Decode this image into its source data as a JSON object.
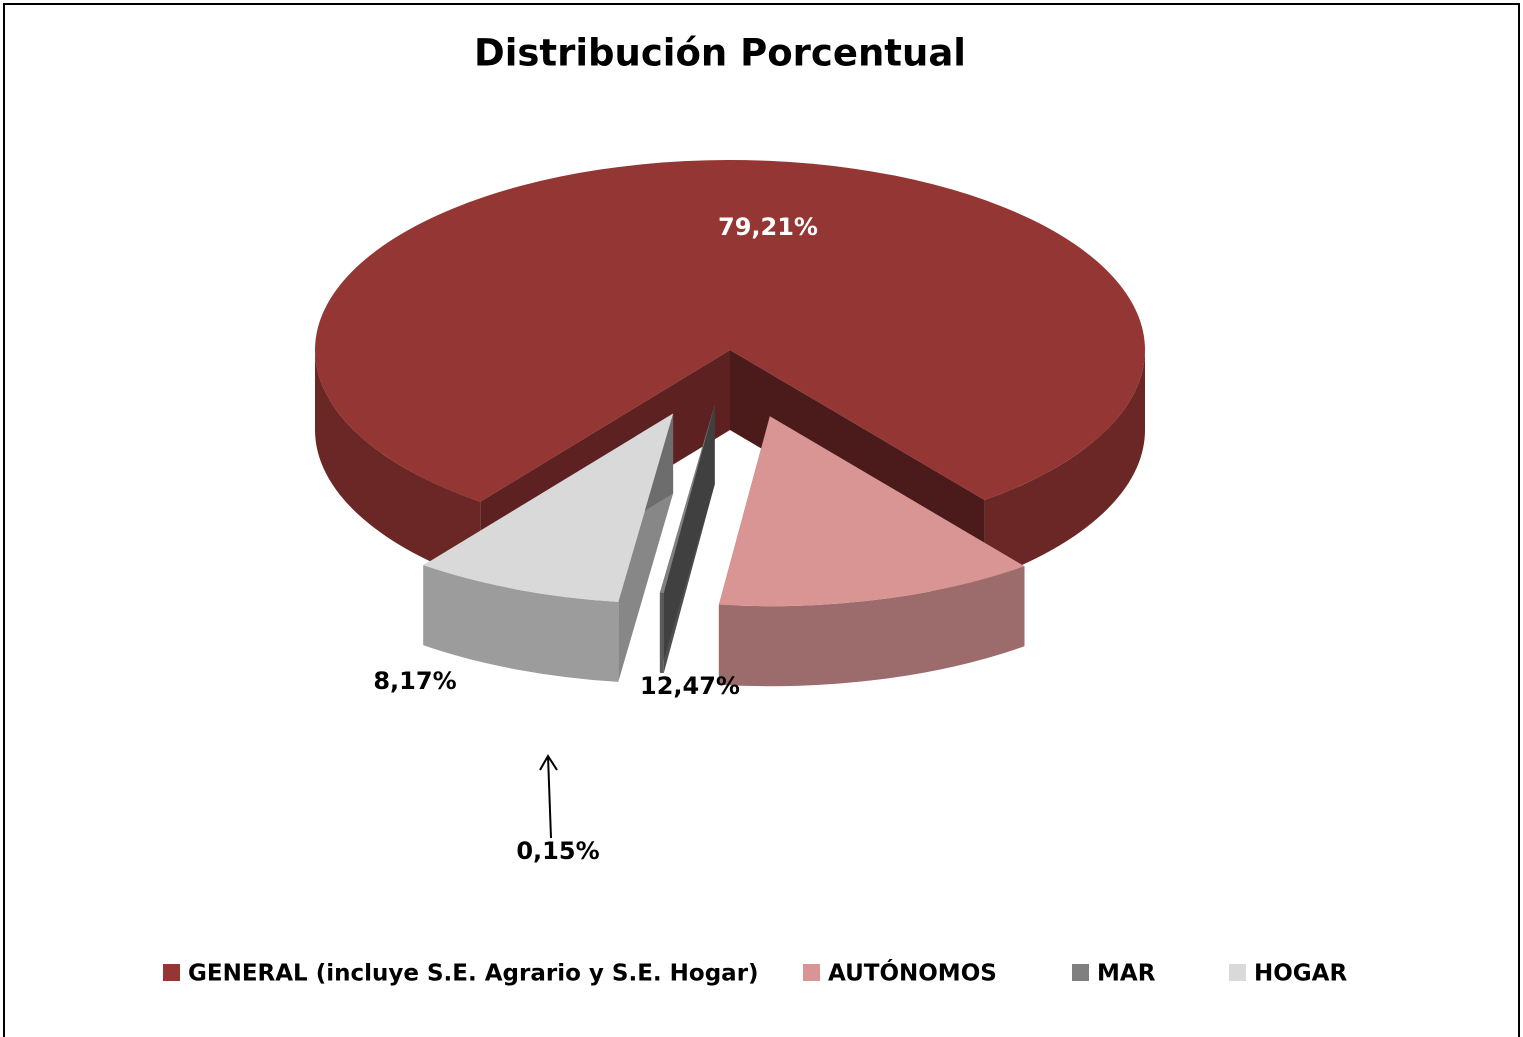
{
  "chart_data": {
    "type": "pie3d",
    "title": "Distribución Porcentual",
    "categories": [
      "GENERAL (incluye S.E. Agrario y S.E. Hogar)",
      "AUTÓNOMOS",
      "MAR",
      "HOGAR"
    ],
    "values": [
      79.21,
      12.47,
      0.15,
      8.17
    ],
    "value_labels": [
      "79,21%",
      "12,47%",
      "0,15%",
      "8,17%"
    ],
    "colors": [
      "#943634",
      "#d99594",
      "#808080",
      "#d9d9d9"
    ],
    "legend": "bottom"
  }
}
